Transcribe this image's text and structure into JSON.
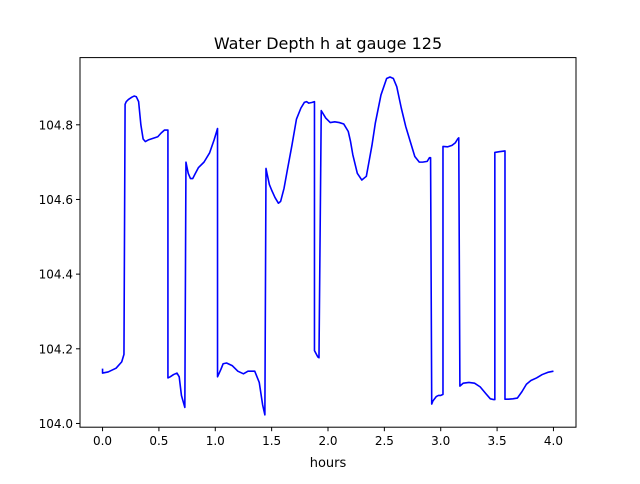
{
  "chart_data": {
    "type": "line",
    "title": "Water Depth h at gauge 125",
    "xlabel": "hours",
    "ylabel": "",
    "xlim": [
      -0.2,
      4.2
    ],
    "ylim": [
      103.99,
      104.98
    ],
    "xticks": [
      0.0,
      0.5,
      1.0,
      1.5,
      2.0,
      2.5,
      3.0,
      3.5,
      4.0
    ],
    "xtick_labels": [
      "0.0",
      "0.5",
      "1.0",
      "1.5",
      "2.0",
      "2.5",
      "3.0",
      "3.5",
      "4.0"
    ],
    "yticks": [
      104.0,
      104.2,
      104.4,
      104.6,
      104.8
    ],
    "ytick_labels": [
      "104.0",
      "104.2",
      "104.4",
      "104.6",
      "104.8"
    ],
    "grid": false,
    "legend": "none",
    "series": [
      {
        "color": "#0000ff",
        "x": [
          0.0,
          0.0,
          0.05,
          0.12,
          0.17,
          0.19,
          0.2,
          0.21,
          0.23,
          0.26,
          0.28,
          0.3,
          0.32,
          0.34,
          0.36,
          0.38,
          0.41,
          0.45,
          0.49,
          0.52,
          0.55,
          0.58,
          0.58,
          0.6,
          0.63,
          0.66,
          0.68,
          0.7,
          0.73,
          0.74,
          0.76,
          0.78,
          0.8,
          0.82,
          0.85,
          0.9,
          0.95,
          0.99,
          1.02,
          1.02,
          1.05,
          1.07,
          1.1,
          1.15,
          1.2,
          1.25,
          1.29,
          1.35,
          1.39,
          1.42,
          1.44,
          1.45,
          1.46,
          1.48,
          1.5,
          1.53,
          1.56,
          1.58,
          1.61,
          1.64,
          1.68,
          1.72,
          1.76,
          1.79,
          1.81,
          1.83,
          1.86,
          1.88,
          1.88,
          1.91,
          1.92,
          1.94,
          1.98,
          2.02,
          2.06,
          2.1,
          2.14,
          2.18,
          2.2,
          2.22,
          2.26,
          2.3,
          2.34,
          2.36,
          2.39,
          2.42,
          2.47,
          2.52,
          2.55,
          2.58,
          2.61,
          2.65,
          2.69,
          2.73,
          2.77,
          2.81,
          2.84,
          2.88,
          2.9,
          2.91,
          2.92,
          2.93,
          2.96,
          2.98,
          3.0,
          3.02,
          3.02,
          3.06,
          3.1,
          3.13,
          3.15,
          3.16,
          3.17,
          3.2,
          3.25,
          3.3,
          3.35,
          3.4,
          3.44,
          3.47,
          3.48,
          3.48,
          3.52,
          3.57,
          3.57,
          3.6,
          3.64,
          3.68,
          3.72,
          3.76,
          3.8,
          3.85,
          3.9,
          3.95,
          4.0
        ],
        "values": [
          104.147,
          104.135,
          104.138,
          104.148,
          104.165,
          104.185,
          104.855,
          104.862,
          104.868,
          104.874,
          104.877,
          104.875,
          104.862,
          104.8,
          104.762,
          104.755,
          104.76,
          104.764,
          104.768,
          104.778,
          104.786,
          104.786,
          104.122,
          104.125,
          104.131,
          104.135,
          104.125,
          104.075,
          104.043,
          104.7,
          104.67,
          104.656,
          104.656,
          104.668,
          104.685,
          104.7,
          104.725,
          104.76,
          104.79,
          104.125,
          104.145,
          104.16,
          104.162,
          104.155,
          104.14,
          104.133,
          104.14,
          104.14,
          104.11,
          104.05,
          104.023,
          104.683,
          104.668,
          104.64,
          104.625,
          104.605,
          104.59,
          104.595,
          104.63,
          104.68,
          104.745,
          104.815,
          104.845,
          104.86,
          104.862,
          104.858,
          104.86,
          104.862,
          104.195,
          104.178,
          104.176,
          104.838,
          104.818,
          104.806,
          104.808,
          104.806,
          104.802,
          104.782,
          104.755,
          104.72,
          104.67,
          104.652,
          104.662,
          104.695,
          104.745,
          104.805,
          104.88,
          104.924,
          104.928,
          104.924,
          104.902,
          104.845,
          104.795,
          104.755,
          104.715,
          104.7,
          104.7,
          104.702,
          104.712,
          104.712,
          104.052,
          104.06,
          104.072,
          104.075,
          104.075,
          104.078,
          104.742,
          104.741,
          104.745,
          104.752,
          104.762,
          104.765,
          104.1,
          104.108,
          104.11,
          104.108,
          104.098,
          104.08,
          104.066,
          104.064,
          104.064,
          104.726,
          104.728,
          104.73,
          104.065,
          104.065,
          104.066,
          104.068,
          104.085,
          104.105,
          104.115,
          104.122,
          104.131,
          104.137,
          104.14
        ]
      }
    ]
  }
}
